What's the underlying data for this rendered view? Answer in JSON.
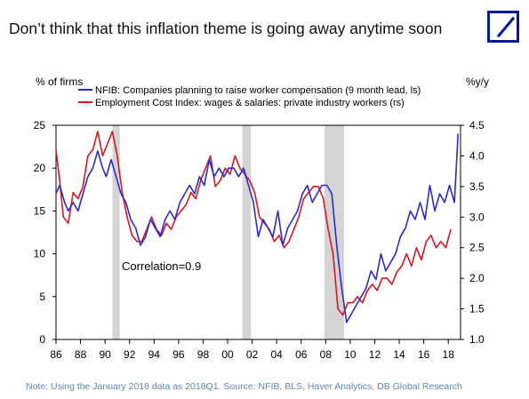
{
  "header": {
    "title": "Don’t think that this inflation theme is going away anytime soon",
    "logo_icon": "deutsche-bank-logo-icon",
    "logo_color": "#0018a8"
  },
  "footnote": "Note: Using the January 2018 data as 2018Q1. Source: NFIB, BLS, Haver Analytics, DB Global Research",
  "chart_data": {
    "type": "line",
    "title": "",
    "ylabel_left": "% of firms",
    "ylabel_right": "%y/y",
    "ylim_left": [
      0,
      25
    ],
    "yticks_left": [
      "0",
      "5",
      "10",
      "15",
      "20",
      "25"
    ],
    "ylim_right": [
      1.0,
      4.5
    ],
    "yticks_right": [
      "1.0",
      "1.5",
      "2.0",
      "2.5",
      "3.0",
      "3.5",
      "4.0",
      "4.5"
    ],
    "xlim": [
      1986,
      2019
    ],
    "xtick_labels": [
      "86",
      "88",
      "90",
      "92",
      "94",
      "96",
      "98",
      "00",
      "02",
      "04",
      "06",
      "08",
      "10",
      "12",
      "14",
      "16",
      "18"
    ],
    "xtick_years": [
      1986,
      1988,
      1990,
      1992,
      1994,
      1996,
      1998,
      2000,
      2002,
      2004,
      2006,
      2008,
      2010,
      2012,
      2014,
      2016,
      2018
    ],
    "legend_position": "top-left",
    "recessions": [
      [
        1990.6,
        1991.2
      ],
      [
        2001.2,
        2001.9
      ],
      [
        2007.9,
        2009.5
      ]
    ],
    "annotation": "Correlation=0.9",
    "series": [
      {
        "name": "NFIB: Companies planning to raise worker compensation (9 month lead, ls)",
        "axis": "left",
        "color": "#2a2ad8",
        "x": [
          1986.0,
          1986.3,
          1986.7,
          1987.0,
          1987.4,
          1987.8,
          1988.2,
          1988.6,
          1989.0,
          1989.4,
          1989.8,
          1990.1,
          1990.5,
          1990.9,
          1991.3,
          1991.7,
          1992.1,
          1992.5,
          1992.9,
          1993.3,
          1993.7,
          1994.1,
          1994.5,
          1994.9,
          1995.3,
          1995.7,
          1996.1,
          1996.5,
          1996.9,
          1997.3,
          1997.7,
          1998.1,
          1998.5,
          1998.9,
          1999.3,
          1999.7,
          2000.1,
          2000.5,
          2000.9,
          2001.3,
          2001.7,
          2002.1,
          2002.5,
          2002.9,
          2003.3,
          2003.7,
          2004.1,
          2004.5,
          2004.9,
          2005.3,
          2005.7,
          2006.1,
          2006.5,
          2006.9,
          2007.3,
          2007.7,
          2008.1,
          2008.5,
          2008.9,
          2009.3,
          2009.7,
          2010.1,
          2010.5,
          2010.9,
          2011.3,
          2011.7,
          2012.1,
          2012.5,
          2012.9,
          2013.3,
          2013.7,
          2014.1,
          2014.5,
          2014.9,
          2015.3,
          2015.7,
          2016.1,
          2016.5,
          2016.9,
          2017.3,
          2017.7,
          2018.1,
          2018.5,
          2018.8
        ],
        "values": [
          17,
          18,
          16,
          15,
          16,
          15,
          17,
          19,
          20,
          22,
          20,
          19,
          21,
          19,
          17,
          16,
          14,
          13,
          11,
          12,
          14,
          13,
          12,
          14,
          15,
          14,
          16,
          17,
          18,
          17,
          19,
          18,
          21,
          19,
          20,
          19,
          20,
          20,
          19,
          20,
          18,
          16,
          12,
          14,
          13,
          12,
          15,
          11,
          13,
          14,
          15,
          17,
          18,
          16,
          17,
          18,
          18,
          17,
          11,
          6,
          2,
          3,
          4,
          5,
          6,
          8,
          7,
          10,
          8,
          9,
          10,
          12,
          13,
          15,
          14,
          16,
          14,
          18,
          15,
          17,
          16,
          18,
          16,
          24
        ]
      },
      {
        "name": "Employment Cost Index: wages & salaries: private industry workers (rs)",
        "axis": "right",
        "color": "#e0141e",
        "x": [
          1986.0,
          1986.3,
          1986.6,
          1987.0,
          1987.4,
          1987.8,
          1988.2,
          1988.6,
          1989.0,
          1989.4,
          1989.8,
          1990.2,
          1990.6,
          1991.0,
          1991.4,
          1991.8,
          1992.2,
          1992.6,
          1993.0,
          1993.4,
          1993.8,
          1994.2,
          1994.6,
          1995.0,
          1995.4,
          1995.8,
          1996.2,
          1996.6,
          1997.0,
          1997.4,
          1997.8,
          1998.2,
          1998.6,
          1999.0,
          1999.4,
          1999.8,
          2000.2,
          2000.6,
          2001.0,
          2001.4,
          2001.8,
          2002.2,
          2002.6,
          2003.0,
          2003.4,
          2003.8,
          2004.2,
          2004.6,
          2005.0,
          2005.4,
          2005.8,
          2006.2,
          2006.6,
          2007.0,
          2007.4,
          2007.8,
          2008.2,
          2008.6,
          2009.0,
          2009.4,
          2009.8,
          2010.2,
          2010.6,
          2011.0,
          2011.4,
          2011.8,
          2012.2,
          2012.6,
          2013.0,
          2013.4,
          2013.8,
          2014.2,
          2014.6,
          2015.0,
          2015.4,
          2015.8,
          2016.2,
          2016.6,
          2017.0,
          2017.4,
          2017.8,
          2018.2
        ],
        "values": [
          4.1,
          3.6,
          3.0,
          2.9,
          3.4,
          3.3,
          3.5,
          4.0,
          4.1,
          4.4,
          4.0,
          4.2,
          4.4,
          4.0,
          3.4,
          3.0,
          2.7,
          2.6,
          2.6,
          2.8,
          3.0,
          2.8,
          2.7,
          2.9,
          2.8,
          3.0,
          3.1,
          3.2,
          3.4,
          3.3,
          3.6,
          3.8,
          4.0,
          3.5,
          3.6,
          3.8,
          3.7,
          4.0,
          3.8,
          3.7,
          3.6,
          3.4,
          3.0,
          2.9,
          2.8,
          2.6,
          2.7,
          2.5,
          2.6,
          2.8,
          3.0,
          3.3,
          3.4,
          3.5,
          3.5,
          3.3,
          2.8,
          2.4,
          1.5,
          1.4,
          1.6,
          1.6,
          1.7,
          1.6,
          1.8,
          1.9,
          1.8,
          2.0,
          2.0,
          1.9,
          2.1,
          2.2,
          2.4,
          2.2,
          2.5,
          2.3,
          2.6,
          2.7,
          2.5,
          2.6,
          2.5,
          2.8
        ]
      }
    ]
  }
}
